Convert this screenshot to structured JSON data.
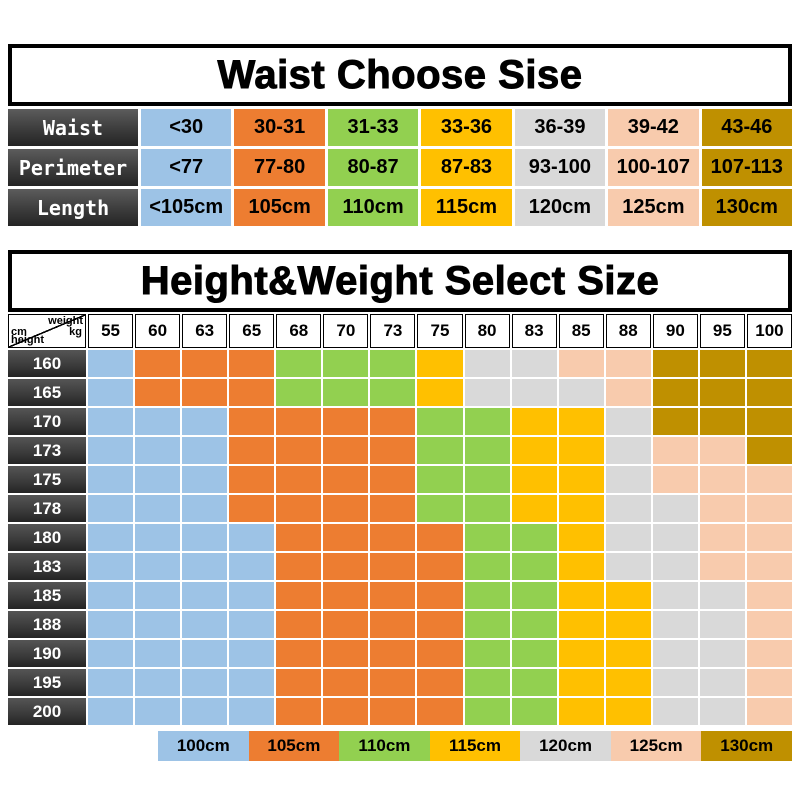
{
  "colors": {
    "header_dark": "#3c3c3c",
    "grid_line": "#ffffff",
    "border_black": "#000000"
  },
  "color_map": {
    "100cm": "#9dc3e6",
    "105cm": "#ed7d31",
    "110cm": "#92d050",
    "115cm": "#ffc000",
    "120cm": "#d9d9d9",
    "125cm": "#f8cbad",
    "130cm": "#bf9000"
  },
  "chart_data": [
    {
      "type": "table",
      "title": "Waist Choose Sise",
      "row_headers": [
        "Waist",
        "Perimeter",
        "Length"
      ],
      "rows": [
        [
          "<30",
          "30-31",
          "31-33",
          "33-36",
          "36-39",
          "39-42",
          "43-46"
        ],
        [
          "<77",
          "77-80",
          "80-87",
          "87-83",
          "93-100",
          "100-107",
          "107-113"
        ],
        [
          "<105cm",
          "105cm",
          "110cm",
          "115cm",
          "120cm",
          "125cm",
          "130cm"
        ]
      ],
      "column_sizes": [
        "100cm",
        "105cm",
        "110cm",
        "115cm",
        "120cm",
        "125cm",
        "130cm"
      ]
    },
    {
      "type": "heatmap",
      "title": "Height&Weight Select Size",
      "xlabel_line1": "weight",
      "xlabel_line2": "kg",
      "ylabel_line1": "cm",
      "ylabel_line2": "height",
      "x": [
        "55",
        "60",
        "63",
        "65",
        "68",
        "70",
        "73",
        "75",
        "80",
        "83",
        "85",
        "88",
        "90",
        "95",
        "100"
      ],
      "y": [
        "160",
        "165",
        "170",
        "173",
        "175",
        "178",
        "180",
        "183",
        "185",
        "188",
        "190",
        "195",
        "200"
      ],
      "values": [
        [
          "100cm",
          "105cm",
          "105cm",
          "105cm",
          "110cm",
          "110cm",
          "110cm",
          "115cm",
          "120cm",
          "120cm",
          "125cm",
          "125cm",
          "130cm",
          "130cm",
          "130cm"
        ],
        [
          "100cm",
          "105cm",
          "105cm",
          "105cm",
          "110cm",
          "110cm",
          "110cm",
          "115cm",
          "120cm",
          "120cm",
          "120cm",
          "125cm",
          "130cm",
          "130cm",
          "130cm"
        ],
        [
          "100cm",
          "100cm",
          "100cm",
          "105cm",
          "105cm",
          "105cm",
          "105cm",
          "110cm",
          "110cm",
          "115cm",
          "115cm",
          "120cm",
          "130cm",
          "130cm",
          "130cm"
        ],
        [
          "100cm",
          "100cm",
          "100cm",
          "105cm",
          "105cm",
          "105cm",
          "105cm",
          "110cm",
          "110cm",
          "115cm",
          "115cm",
          "120cm",
          "125cm",
          "125cm",
          "130cm"
        ],
        [
          "100cm",
          "100cm",
          "100cm",
          "105cm",
          "105cm",
          "105cm",
          "105cm",
          "110cm",
          "110cm",
          "115cm",
          "115cm",
          "120cm",
          "125cm",
          "125cm",
          "125cm"
        ],
        [
          "100cm",
          "100cm",
          "100cm",
          "105cm",
          "105cm",
          "105cm",
          "105cm",
          "110cm",
          "110cm",
          "115cm",
          "115cm",
          "120cm",
          "120cm",
          "125cm",
          "125cm"
        ],
        [
          "100cm",
          "100cm",
          "100cm",
          "100cm",
          "105cm",
          "105cm",
          "105cm",
          "105cm",
          "110cm",
          "110cm",
          "115cm",
          "120cm",
          "120cm",
          "125cm",
          "125cm"
        ],
        [
          "100cm",
          "100cm",
          "100cm",
          "100cm",
          "105cm",
          "105cm",
          "105cm",
          "105cm",
          "110cm",
          "110cm",
          "115cm",
          "120cm",
          "120cm",
          "125cm",
          "125cm"
        ],
        [
          "100cm",
          "100cm",
          "100cm",
          "100cm",
          "105cm",
          "105cm",
          "105cm",
          "105cm",
          "110cm",
          "110cm",
          "115cm",
          "115cm",
          "120cm",
          "120cm",
          "125cm"
        ],
        [
          "100cm",
          "100cm",
          "100cm",
          "100cm",
          "105cm",
          "105cm",
          "105cm",
          "105cm",
          "110cm",
          "110cm",
          "115cm",
          "115cm",
          "120cm",
          "120cm",
          "125cm"
        ],
        [
          "100cm",
          "100cm",
          "100cm",
          "100cm",
          "105cm",
          "105cm",
          "105cm",
          "105cm",
          "110cm",
          "110cm",
          "115cm",
          "115cm",
          "120cm",
          "120cm",
          "125cm"
        ],
        [
          "100cm",
          "100cm",
          "100cm",
          "100cm",
          "105cm",
          "105cm",
          "105cm",
          "105cm",
          "110cm",
          "110cm",
          "115cm",
          "115cm",
          "120cm",
          "120cm",
          "125cm"
        ],
        [
          "100cm",
          "100cm",
          "100cm",
          "100cm",
          "105cm",
          "105cm",
          "105cm",
          "105cm",
          "110cm",
          "110cm",
          "115cm",
          "115cm",
          "120cm",
          "120cm",
          "125cm"
        ]
      ],
      "legend": [
        "100cm",
        "105cm",
        "110cm",
        "115cm",
        "120cm",
        "125cm",
        "130cm"
      ]
    }
  ]
}
